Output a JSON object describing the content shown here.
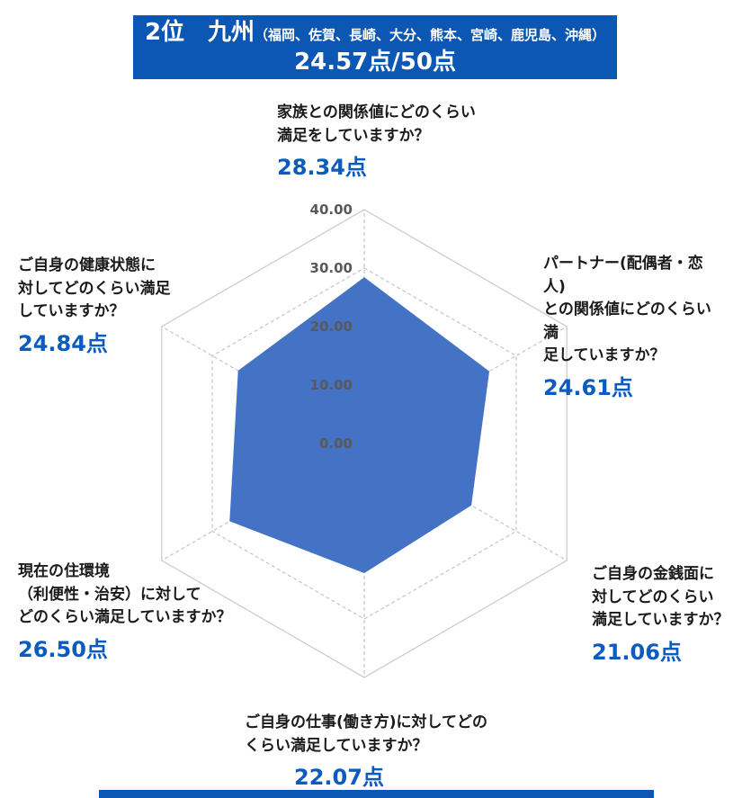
{
  "header": {
    "rank_region": "2位　九州",
    "prefectures": "（福岡、佐賀、長崎、大分、熊本、宮崎、鹿児島、沖縄）",
    "total_score": "24.57点/50点"
  },
  "colors": {
    "banner_bg": "#0d57b4",
    "score_text": "#0b5cbe",
    "polygon_fill": "#4472c4",
    "grid": "#c3c3c3",
    "tick_text": "#595959"
  },
  "chart_data": {
    "type": "radar",
    "max": 40,
    "ring_step": 10,
    "tick_labels": [
      "0.00",
      "10.00",
      "20.00",
      "30.00",
      "40.00"
    ],
    "legend_position": "none",
    "grid": "dashed",
    "axes": [
      {
        "name": "family",
        "lines": [
          "家族との関係値にどのくらい",
          "満足をしていますか？"
        ],
        "score": 28.34,
        "score_label": "28.34点"
      },
      {
        "name": "partner",
        "lines": [
          "パートナー(配偶者・恋人)",
          "との関係値にどのくらい満",
          "足していますか？"
        ],
        "score": 24.61,
        "score_label": "24.61点"
      },
      {
        "name": "money",
        "lines": [
          "ご自身の金銭面に",
          "対してどのくらい",
          "満足していますか？"
        ],
        "score": 21.06,
        "score_label": "21.06点"
      },
      {
        "name": "work",
        "lines": [
          "ご自身の仕事(働き方)に対してどの",
          "くらい満足していますか？"
        ],
        "score": 22.07,
        "score_label": "22.07点"
      },
      {
        "name": "living",
        "lines": [
          "現在の住環境",
          "（利便性・治安）に対して",
          "どのくらい満足していますか？"
        ],
        "score": 26.5,
        "score_label": "26.50点"
      },
      {
        "name": "health",
        "lines": [
          "ご自身の健康状態に",
          "対してどのくらい満足",
          "していますか？"
        ],
        "score": 24.84,
        "score_label": "24.84点"
      }
    ]
  }
}
